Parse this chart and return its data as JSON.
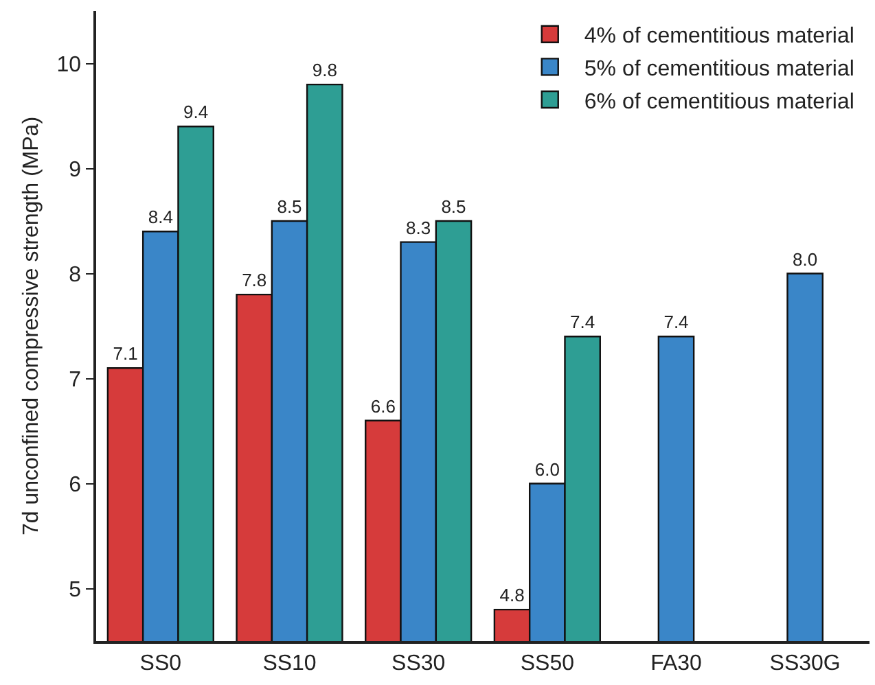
{
  "chart_data": {
    "type": "bar",
    "ylabel": "7d unconfined compressive strength (MPa)",
    "categories": [
      "SS0",
      "SS10",
      "SS30",
      "SS50",
      "FA30",
      "SS30G"
    ],
    "series": [
      {
        "name": "4% of cementitious material",
        "color": "#d63b3b",
        "values": [
          7.1,
          7.8,
          6.6,
          4.8,
          null,
          null
        ],
        "value_labels": [
          "7.1",
          "7.8",
          "6.6",
          "4.8",
          null,
          null
        ]
      },
      {
        "name": "5% of cementitious material",
        "color": "#3a86c8",
        "values": [
          8.4,
          8.5,
          8.3,
          6.0,
          7.4,
          8.0
        ],
        "value_labels": [
          "8.4",
          "8.5",
          "8.3",
          "6.0",
          "7.4",
          "8.0"
        ]
      },
      {
        "name": "6% of cementitious material",
        "color": "#2e9e94",
        "values": [
          9.4,
          9.8,
          8.5,
          7.4,
          null,
          null
        ],
        "value_labels": [
          "9.4",
          "9.8",
          "8.5",
          "7.4",
          null,
          null
        ]
      }
    ],
    "ylim": [
      4.5,
      10.5
    ],
    "yticks": [
      5,
      6,
      7,
      8,
      9,
      10
    ],
    "grid": false,
    "legend": "top right"
  }
}
